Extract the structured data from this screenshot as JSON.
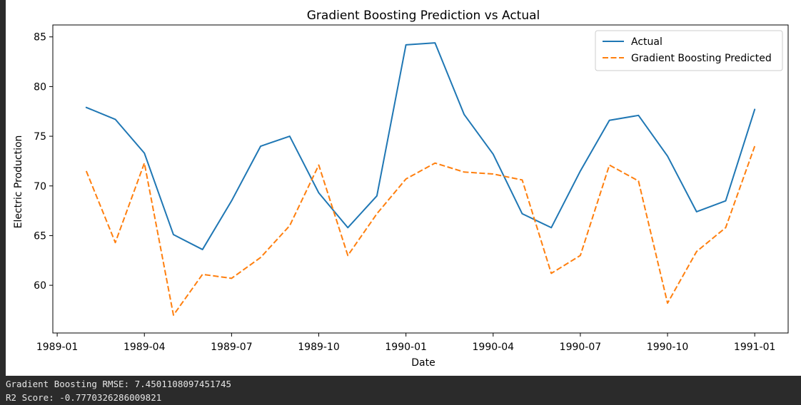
{
  "chart_data": {
    "type": "line",
    "title": "Gradient Boosting Prediction vs Actual",
    "xlabel": "Date",
    "ylabel": "Electric Production",
    "x": [
      "1989-02",
      "1989-03",
      "1989-04",
      "1989-05",
      "1989-06",
      "1989-07",
      "1989-08",
      "1989-09",
      "1989-10",
      "1989-11",
      "1989-12",
      "1990-01",
      "1990-02",
      "1990-03",
      "1990-04",
      "1990-05",
      "1990-06",
      "1990-07",
      "1990-08",
      "1990-09",
      "1990-10",
      "1990-11",
      "1990-12",
      "1991-01"
    ],
    "series": [
      {
        "name": "Actual",
        "color": "#1f77b4",
        "style": "solid",
        "values": [
          77.9,
          76.7,
          73.3,
          65.1,
          63.6,
          68.5,
          74.0,
          75.0,
          69.3,
          65.8,
          69.0,
          84.2,
          84.4,
          77.2,
          73.2,
          67.2,
          65.8,
          71.5,
          76.6,
          77.1,
          73.0,
          67.4,
          68.5,
          77.7
        ]
      },
      {
        "name": "Gradient Boosting Predicted",
        "color": "#ff7f0e",
        "style": "dashed",
        "values": [
          71.5,
          64.3,
          72.3,
          57.0,
          61.1,
          60.7,
          62.8,
          66.0,
          72.1,
          63.0,
          67.2,
          70.7,
          72.3,
          71.4,
          71.2,
          70.6,
          61.2,
          63.0,
          72.1,
          70.5,
          58.2,
          63.4,
          65.8,
          74.0
        ]
      }
    ],
    "xticks": [
      "1989-01",
      "1989-04",
      "1989-07",
      "1989-10",
      "1990-01",
      "1990-04",
      "1990-07",
      "1990-10",
      "1991-01"
    ],
    "yticks": [
      60,
      65,
      70,
      75,
      80,
      85
    ],
    "ylim": [
      55.2,
      86.2
    ],
    "grid": false,
    "legend": "top-right"
  },
  "console": {
    "rmse_line": "Gradient Boosting RMSE: 7.4501108097451745",
    "r2_line": "R2 Score: -0.7770326286009821"
  }
}
